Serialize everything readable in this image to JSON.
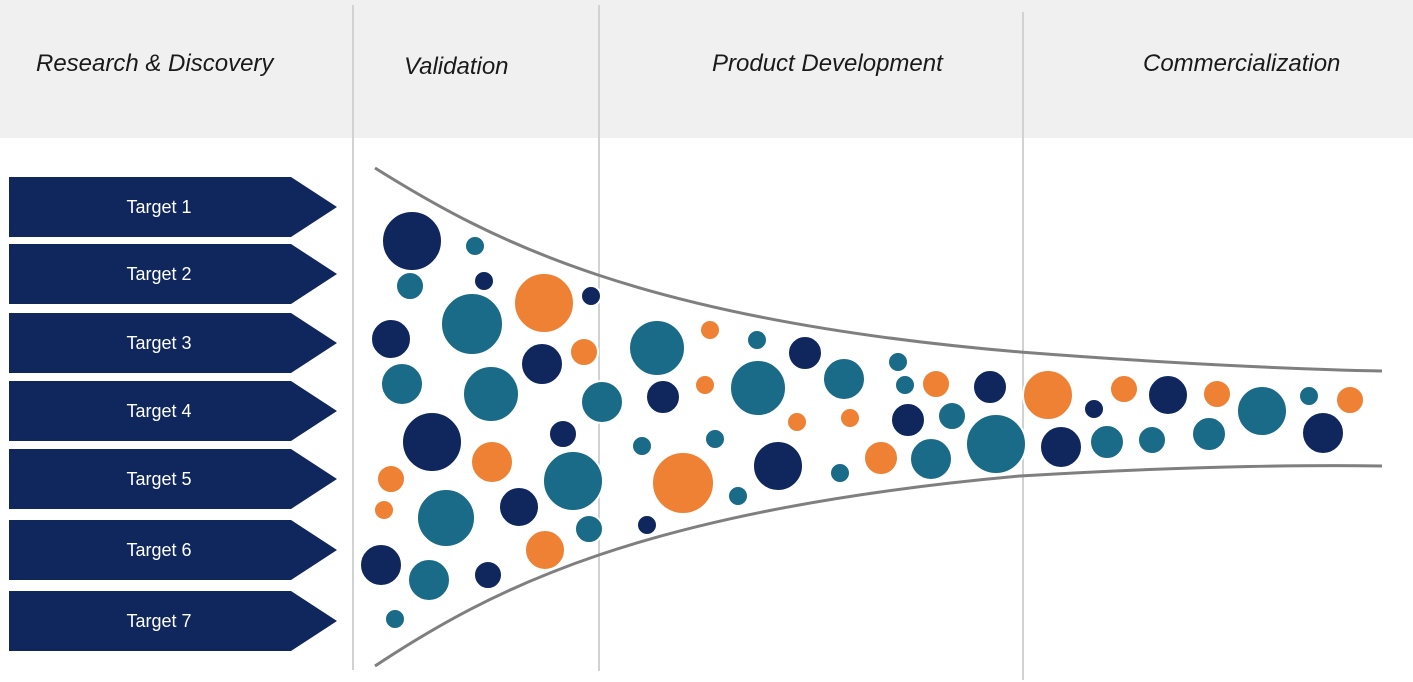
{
  "stages": [
    {
      "title": "Research & Discovery"
    },
    {
      "title": "Validation"
    },
    {
      "title": "Product Development"
    },
    {
      "title": "Commercialization"
    }
  ],
  "targets": [
    {
      "label": "Target 1"
    },
    {
      "label": "Target 2"
    },
    {
      "label": "Target 3"
    },
    {
      "label": "Target 4"
    },
    {
      "label": "Target 5"
    },
    {
      "label": "Target 6"
    },
    {
      "label": "Target 7"
    }
  ],
  "colors": {
    "navy": "#10275e",
    "teal": "#1a6b87",
    "orange": "#ee8133",
    "header_band": "#f0f0f0",
    "funnel_line": "#7f7f7f"
  }
}
